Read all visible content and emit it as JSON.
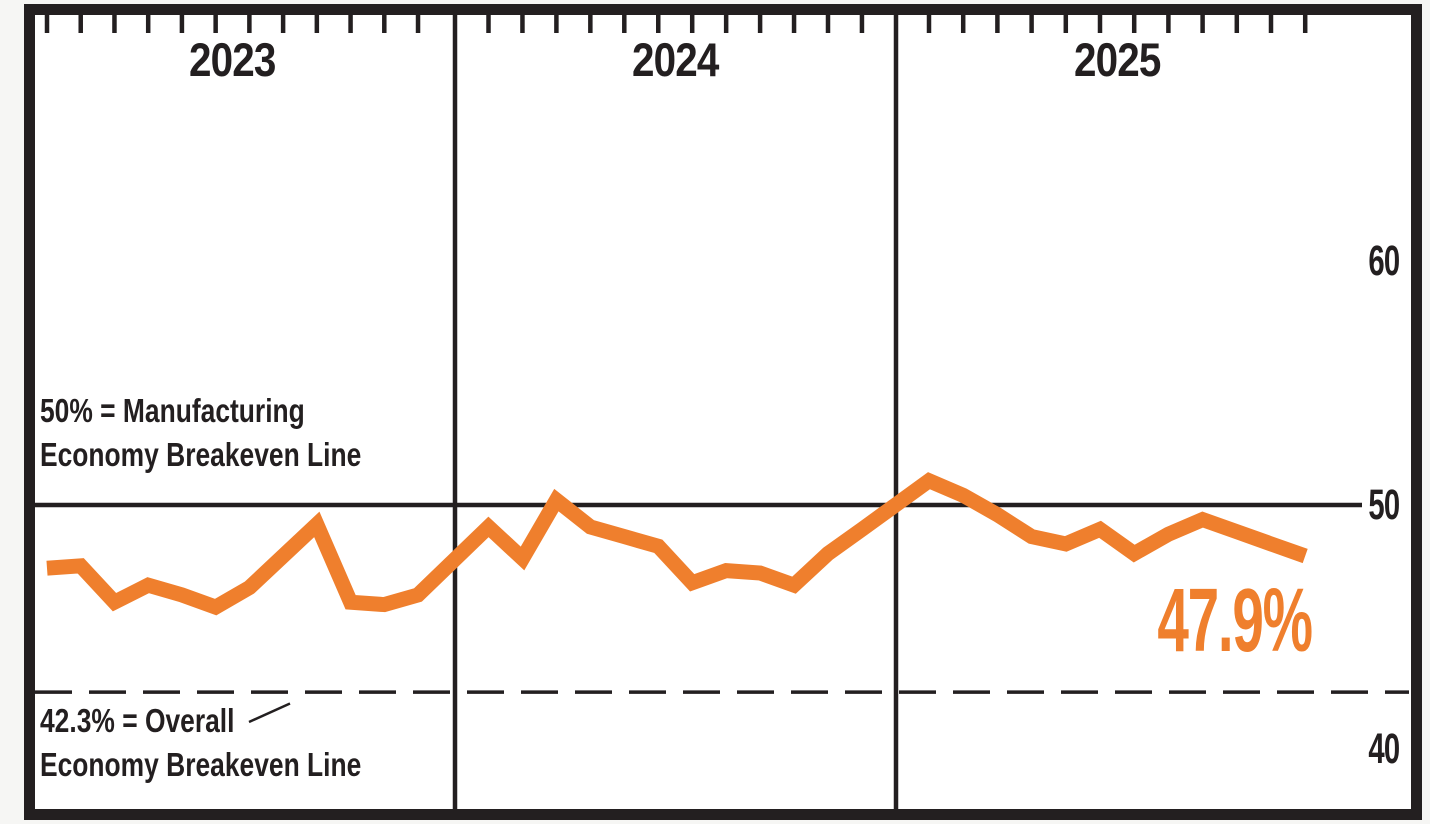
{
  "chart": {
    "y_axis": {
      "labels": [
        {
          "text": "60",
          "value": 60
        },
        {
          "text": "50",
          "value": 50
        },
        {
          "text": "40",
          "value": 40
        }
      ]
    },
    "annotations": {
      "breakeven_manufacturing": {
        "line1": "50% = Manufacturing",
        "line2": "Economy Breakeven Line",
        "value": 50
      },
      "breakeven_overall": {
        "line1": "42.3% = Overall",
        "line2": "Economy Breakeven Line",
        "value": 42.3
      },
      "latest_value_label": "47.9%"
    },
    "colors": {
      "accent_orange": "#EF7F2D",
      "ink": "#231F20"
    }
  },
  "chart_data": {
    "type": "line",
    "title": "",
    "xlabel": "",
    "ylabel": "",
    "ylim": [
      37.5,
      70
    ],
    "grid": "year-dividers-and-breakeven-lines",
    "legend": "none",
    "months_per_year": 12,
    "x_groups": [
      {
        "year": "2023",
        "values": [
          47.4,
          47.5,
          46.0,
          46.7,
          46.3,
          45.8,
          46.6,
          47.9,
          49.2,
          46.0,
          45.9,
          46.3
        ]
      },
      {
        "year": "2024",
        "values": [
          49.1,
          47.8,
          50.2,
          49.1,
          48.7,
          48.3,
          46.8,
          47.3,
          47.2,
          46.7,
          48.0,
          49.0
        ]
      },
      {
        "year": "2025",
        "values": [
          51.0,
          50.4,
          49.6,
          48.7,
          48.4,
          49.0,
          48.0,
          48.8,
          49.4,
          48.9,
          48.4,
          47.9
        ]
      }
    ],
    "reference_lines": [
      {
        "value": 50,
        "style": "solid",
        "label": "50% = Manufacturing Economy Breakeven Line"
      },
      {
        "value": 42.3,
        "style": "dashed",
        "label": "42.3% = Overall Economy Breakeven Line"
      }
    ],
    "final_value": 47.9
  }
}
